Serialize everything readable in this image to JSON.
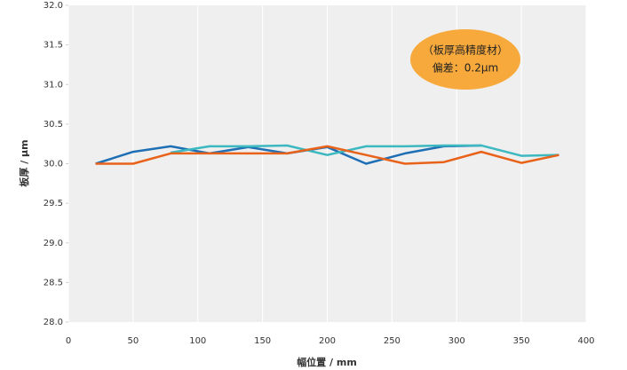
{
  "chart_data": {
    "type": "line",
    "annotation": [
      "（板厚高精度材）",
      "偏差：0.2μm"
    ],
    "xlabel": "幅位置 / mm",
    "ylabel": "板厚 / μm",
    "x": [
      21,
      50,
      79,
      109,
      139,
      169,
      200,
      230,
      260,
      290,
      319,
      350,
      379
    ],
    "series": [
      {
        "color": "#1f6fb5",
        "values": [
          30.0,
          30.15,
          30.22,
          30.13,
          30.21,
          30.13,
          30.21,
          30.0,
          30.13,
          30.22,
          30.23,
          null,
          null
        ]
      },
      {
        "color": "#3bb8c0",
        "values": [
          null,
          null,
          30.14,
          30.22,
          30.22,
          30.23,
          30.11,
          30.22,
          30.22,
          30.23,
          30.23,
          30.1,
          30.11
        ]
      },
      {
        "color": "#e8621a",
        "values": [
          30.0,
          30.0,
          30.13,
          30.13,
          30.13,
          30.13,
          30.22,
          30.11,
          30.0,
          30.02,
          30.15,
          30.01,
          30.11
        ]
      }
    ],
    "xlim": [
      0,
      400
    ],
    "xticks": [
      0,
      50,
      100,
      150,
      200,
      250,
      300,
      350,
      400
    ],
    "ylim": [
      28.0,
      32.0
    ],
    "yticks": [
      {
        "value": 28.0,
        "label": "28.0"
      },
      {
        "value": 28.5,
        "label": "28.5"
      },
      {
        "value": 29.0,
        "label": "29.0"
      },
      {
        "value": 29.5,
        "label": "29.5"
      },
      {
        "value": 30.0,
        "label": "30.0"
      },
      {
        "value": 30.5,
        "label": "30.5"
      },
      {
        "value": 31.0,
        "label": "31.0"
      },
      {
        "value": 31.5,
        "label": "31.5"
      },
      {
        "value": 32.0,
        "label": "32.0"
      }
    ],
    "grid": true
  }
}
